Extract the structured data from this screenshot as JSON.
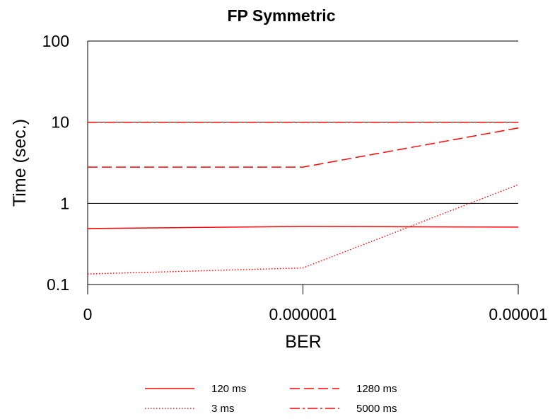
{
  "chart_data": {
    "type": "line",
    "title": "FP Symmetric",
    "xlabel": "BER",
    "ylabel": "Time (sec.)",
    "x": [
      "0",
      "0.000001",
      "0.00001"
    ],
    "y_scale": "log",
    "ylim": [
      0.1,
      100
    ],
    "y_ticks": [
      "0.1",
      "1",
      "10",
      "100"
    ],
    "grid": "horizontal",
    "legend_position": "bottom",
    "series": [
      {
        "name": "120 ms",
        "values": [
          0.49,
          0.52,
          0.51
        ],
        "color": "#ff0000",
        "style": "solid"
      },
      {
        "name": "3 ms",
        "values": [
          0.135,
          0.16,
          1.7
        ],
        "color": "#ff0000",
        "style": "dotted"
      },
      {
        "name": "1280 ms",
        "values": [
          2.8,
          2.8,
          8.5
        ],
        "color": "#ff0000",
        "style": "dashed"
      },
      {
        "name": "5000 ms",
        "values": [
          10,
          10,
          10
        ],
        "color": "#ff0000",
        "style": "dashdot"
      }
    ]
  }
}
